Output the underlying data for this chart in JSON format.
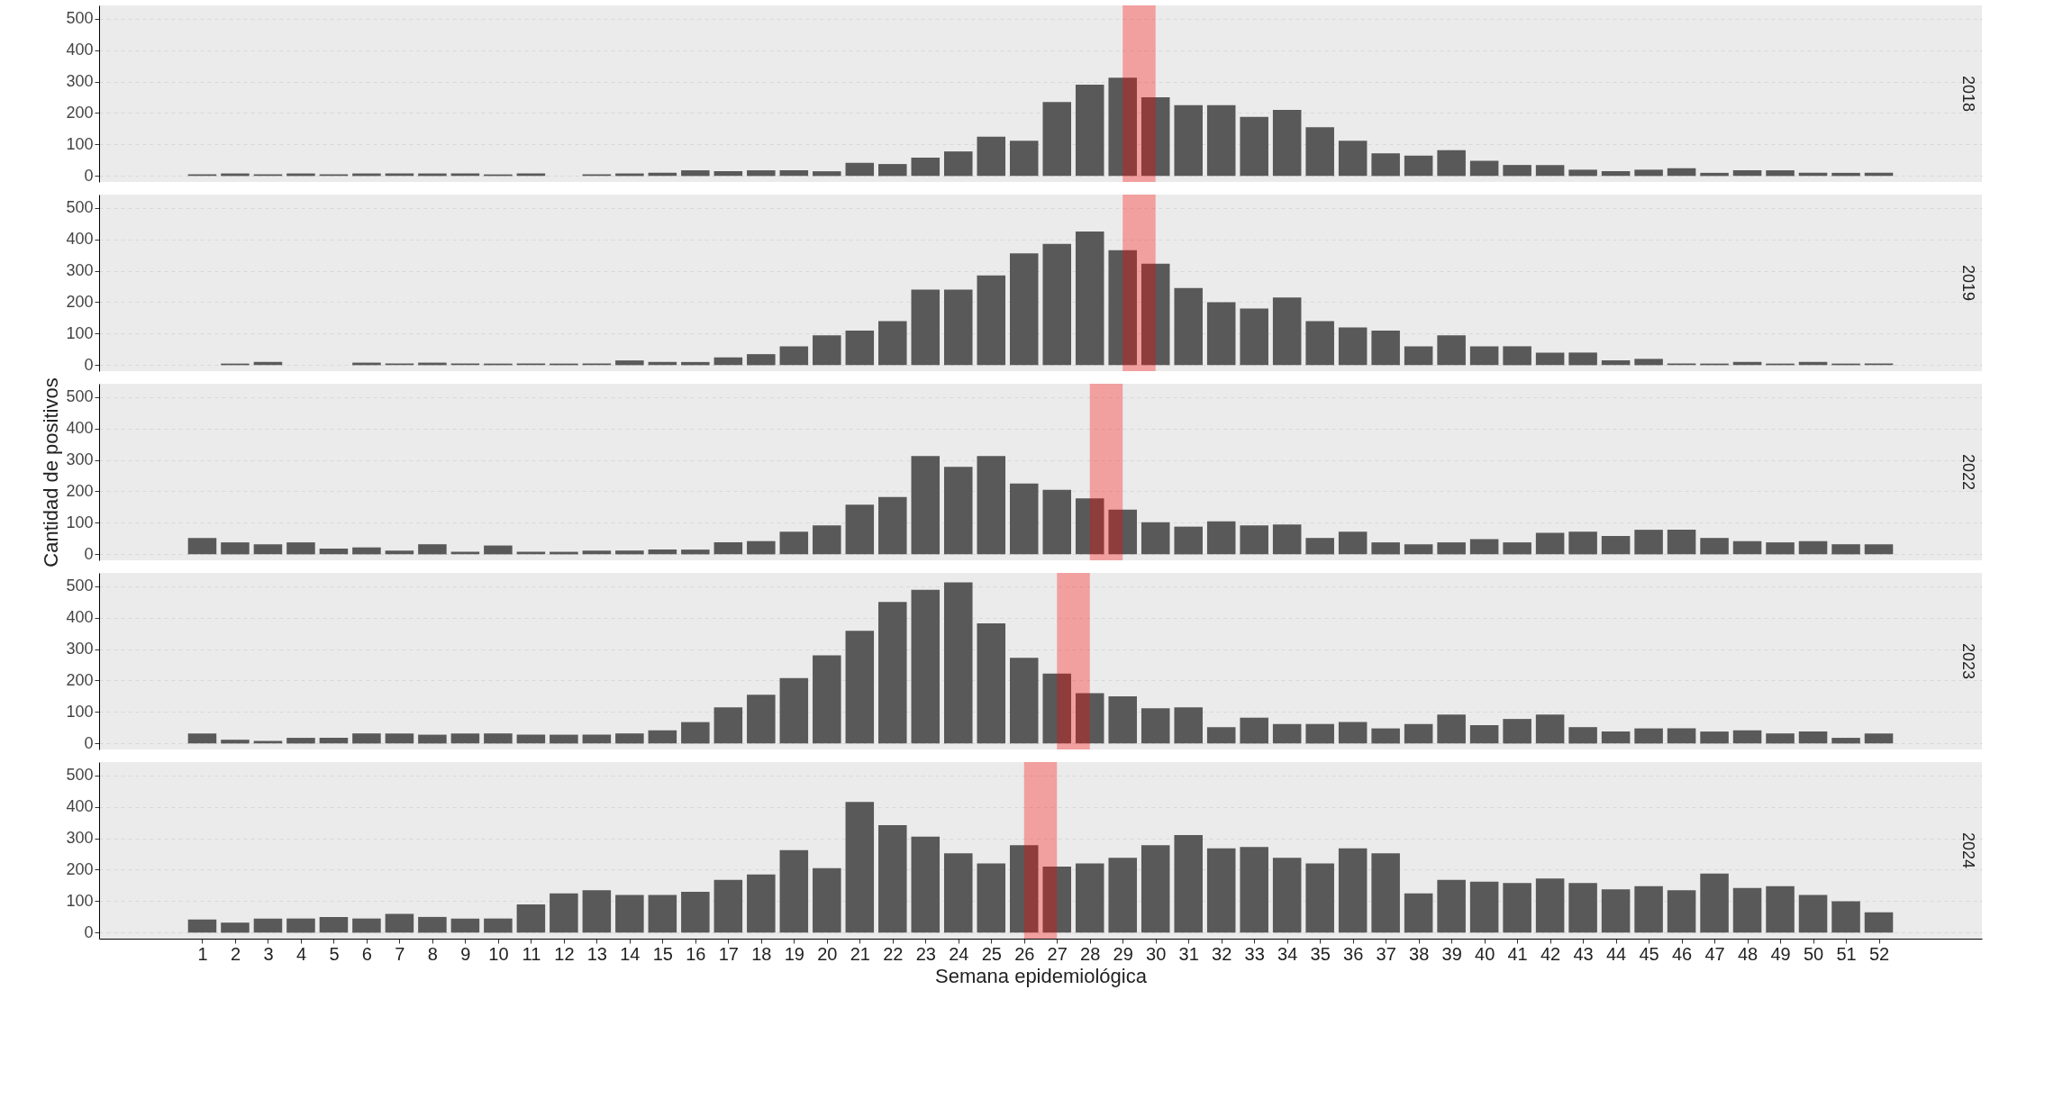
{
  "chart_data": [
    {
      "type": "bar",
      "title": "2018",
      "color": "#595959",
      "xlim": [
        -2,
        55
      ],
      "ylim": [
        -19,
        542
      ],
      "yticks": [
        0,
        100,
        200,
        300,
        400,
        500
      ],
      "grid": "y",
      "tick_labels": "y",
      "x": [
        1,
        2,
        3,
        4,
        5,
        6,
        7,
        8,
        9,
        10,
        11,
        12,
        13,
        14,
        15,
        16,
        17,
        18,
        19,
        20,
        21,
        22,
        23,
        24,
        25,
        26,
        27,
        28,
        29,
        30,
        31,
        32,
        33,
        34,
        35,
        36,
        37,
        38,
        39,
        40,
        41,
        42,
        43,
        44,
        45,
        46,
        47,
        48,
        49,
        50,
        51,
        52
      ],
      "values": [
        5,
        8,
        5,
        8,
        5,
        8,
        8,
        8,
        8,
        5,
        8,
        null,
        5,
        8,
        10,
        18,
        15,
        18,
        18,
        15,
        42,
        38,
        58,
        78,
        125,
        112,
        235,
        290,
        312,
        250,
        225,
        225,
        188,
        210,
        155,
        112,
        72,
        65,
        82,
        48,
        35,
        35,
        20,
        15,
        20,
        25,
        10,
        18,
        18,
        10,
        10,
        10
      ],
      "bands": [
        {
          "axis": "x",
          "from": 29,
          "to": 30,
          "color": "#ff0000"
        }
      ]
    },
    {
      "type": "bar",
      "title": "2019",
      "color": "#595959",
      "xlim": [
        -2,
        55
      ],
      "ylim": [
        -19,
        542
      ],
      "yticks": [
        0,
        100,
        200,
        300,
        400,
        500
      ],
      "grid": "y",
      "tick_labels": "y",
      "x": [
        1,
        2,
        3,
        4,
        5,
        6,
        7,
        8,
        9,
        10,
        11,
        12,
        13,
        14,
        15,
        16,
        17,
        18,
        19,
        20,
        21,
        22,
        23,
        24,
        25,
        26,
        27,
        28,
        29,
        30,
        31,
        32,
        33,
        34,
        35,
        36,
        37,
        38,
        39,
        40,
        41,
        42,
        43,
        44,
        45,
        46,
        47,
        48,
        49,
        50,
        51,
        52
      ],
      "values": [
        0,
        5,
        10,
        0,
        0,
        8,
        5,
        8,
        5,
        5,
        5,
        5,
        5,
        15,
        10,
        10,
        25,
        35,
        60,
        95,
        110,
        140,
        240,
        240,
        285,
        355,
        385,
        425,
        365,
        322,
        245,
        200,
        180,
        215,
        140,
        120,
        110,
        60,
        95,
        60,
        60,
        40,
        40,
        15,
        20,
        5,
        5,
        10,
        5,
        10,
        5,
        5
      ],
      "bands": [
        {
          "axis": "x",
          "from": 29,
          "to": 30,
          "color": "#ff0000"
        }
      ]
    },
    {
      "type": "bar",
      "title": "2022",
      "ylabel": "Cantidad de positivos",
      "color": "#595959",
      "xlim": [
        -2,
        55
      ],
      "ylim": [
        -19,
        542
      ],
      "yticks": [
        0,
        100,
        200,
        300,
        400,
        500
      ],
      "grid": "y",
      "tick_labels": "y",
      "x": [
        1,
        2,
        3,
        4,
        5,
        6,
        7,
        8,
        9,
        10,
        11,
        12,
        13,
        14,
        15,
        16,
        17,
        18,
        19,
        20,
        21,
        22,
        23,
        24,
        25,
        26,
        27,
        28,
        29,
        30,
        31,
        32,
        33,
        34,
        35,
        36,
        37,
        38,
        39,
        40,
        41,
        42,
        43,
        44,
        45,
        46,
        47,
        48,
        49,
        50,
        51,
        52
      ],
      "values": [
        52,
        38,
        32,
        38,
        18,
        22,
        12,
        32,
        8,
        28,
        8,
        8,
        12,
        12,
        15,
        15,
        38,
        42,
        72,
        92,
        158,
        182,
        312,
        278,
        312,
        225,
        205,
        178,
        142,
        102,
        88,
        105,
        92,
        95,
        52,
        72,
        38,
        32,
        38,
        48,
        38,
        68,
        72,
        58,
        78,
        78,
        52,
        42,
        38,
        42,
        32,
        32
      ],
      "bands": [
        {
          "axis": "x",
          "from": 28,
          "to": 29,
          "color": "#ff0000"
        }
      ]
    },
    {
      "type": "bar",
      "title": "2023",
      "color": "#595959",
      "xlim": [
        -2,
        55
      ],
      "ylim": [
        -19,
        542
      ],
      "yticks": [
        0,
        100,
        200,
        300,
        400,
        500
      ],
      "grid": "y",
      "tick_labels": "y",
      "x": [
        1,
        2,
        3,
        4,
        5,
        6,
        7,
        8,
        9,
        10,
        11,
        12,
        13,
        14,
        15,
        16,
        17,
        18,
        19,
        20,
        21,
        22,
        23,
        24,
        25,
        26,
        27,
        28,
        29,
        30,
        31,
        32,
        33,
        34,
        35,
        36,
        37,
        38,
        39,
        40,
        41,
        42,
        43,
        44,
        45,
        46,
        47,
        48,
        49,
        50,
        51,
        52
      ],
      "values": [
        32,
        12,
        8,
        18,
        18,
        32,
        32,
        28,
        32,
        32,
        28,
        28,
        28,
        32,
        42,
        68,
        115,
        155,
        208,
        280,
        358,
        450,
        488,
        512,
        382,
        272,
        222,
        160,
        150,
        112,
        115,
        52,
        82,
        62,
        62,
        68,
        48,
        62,
        92,
        58,
        78,
        92,
        52,
        38,
        48,
        48,
        38,
        42,
        32,
        38,
        18,
        32
      ],
      "bands": [
        {
          "axis": "x",
          "from": 27,
          "to": 28,
          "color": "#ff0000"
        }
      ]
    },
    {
      "type": "bar",
      "title": "2024",
      "xlabel": "Semana epidemiológica",
      "color": "#595959",
      "xlim": [
        -2,
        55
      ],
      "ylim": [
        -19,
        542
      ],
      "yticks": [
        0,
        100,
        200,
        300,
        400,
        500
      ],
      "xticks": [
        1,
        2,
        3,
        4,
        5,
        6,
        7,
        8,
        9,
        10,
        11,
        12,
        13,
        14,
        15,
        16,
        17,
        18,
        19,
        20,
        21,
        22,
        23,
        24,
        25,
        26,
        27,
        28,
        29,
        30,
        31,
        32,
        33,
        34,
        35,
        36,
        37,
        38,
        39,
        40,
        41,
        42,
        43,
        44,
        45,
        46,
        47,
        48,
        49,
        50,
        51,
        52
      ],
      "grid": "y",
      "x": [
        1,
        2,
        3,
        4,
        5,
        6,
        7,
        8,
        9,
        10,
        11,
        12,
        13,
        14,
        15,
        16,
        17,
        18,
        19,
        20,
        21,
        22,
        23,
        24,
        25,
        26,
        27,
        28,
        29,
        30,
        31,
        32,
        33,
        34,
        35,
        36,
        37,
        38,
        39,
        40,
        41,
        42,
        43,
        44,
        45,
        46,
        47,
        48,
        49,
        50,
        51,
        52
      ],
      "values": [
        42,
        32,
        45,
        45,
        50,
        45,
        60,
        50,
        45,
        45,
        90,
        125,
        135,
        120,
        120,
        130,
        168,
        185,
        262,
        205,
        415,
        342,
        305,
        252,
        220,
        278,
        210,
        220,
        238,
        278,
        310,
        268,
        272,
        238,
        220,
        268,
        252,
        125,
        168,
        162,
        158,
        172,
        158,
        138,
        148,
        135,
        188,
        142,
        148,
        120,
        100,
        65
      ],
      "bands": [
        {
          "axis": "x",
          "from": 26,
          "to": 27,
          "color": "#ff0000"
        }
      ]
    }
  ]
}
